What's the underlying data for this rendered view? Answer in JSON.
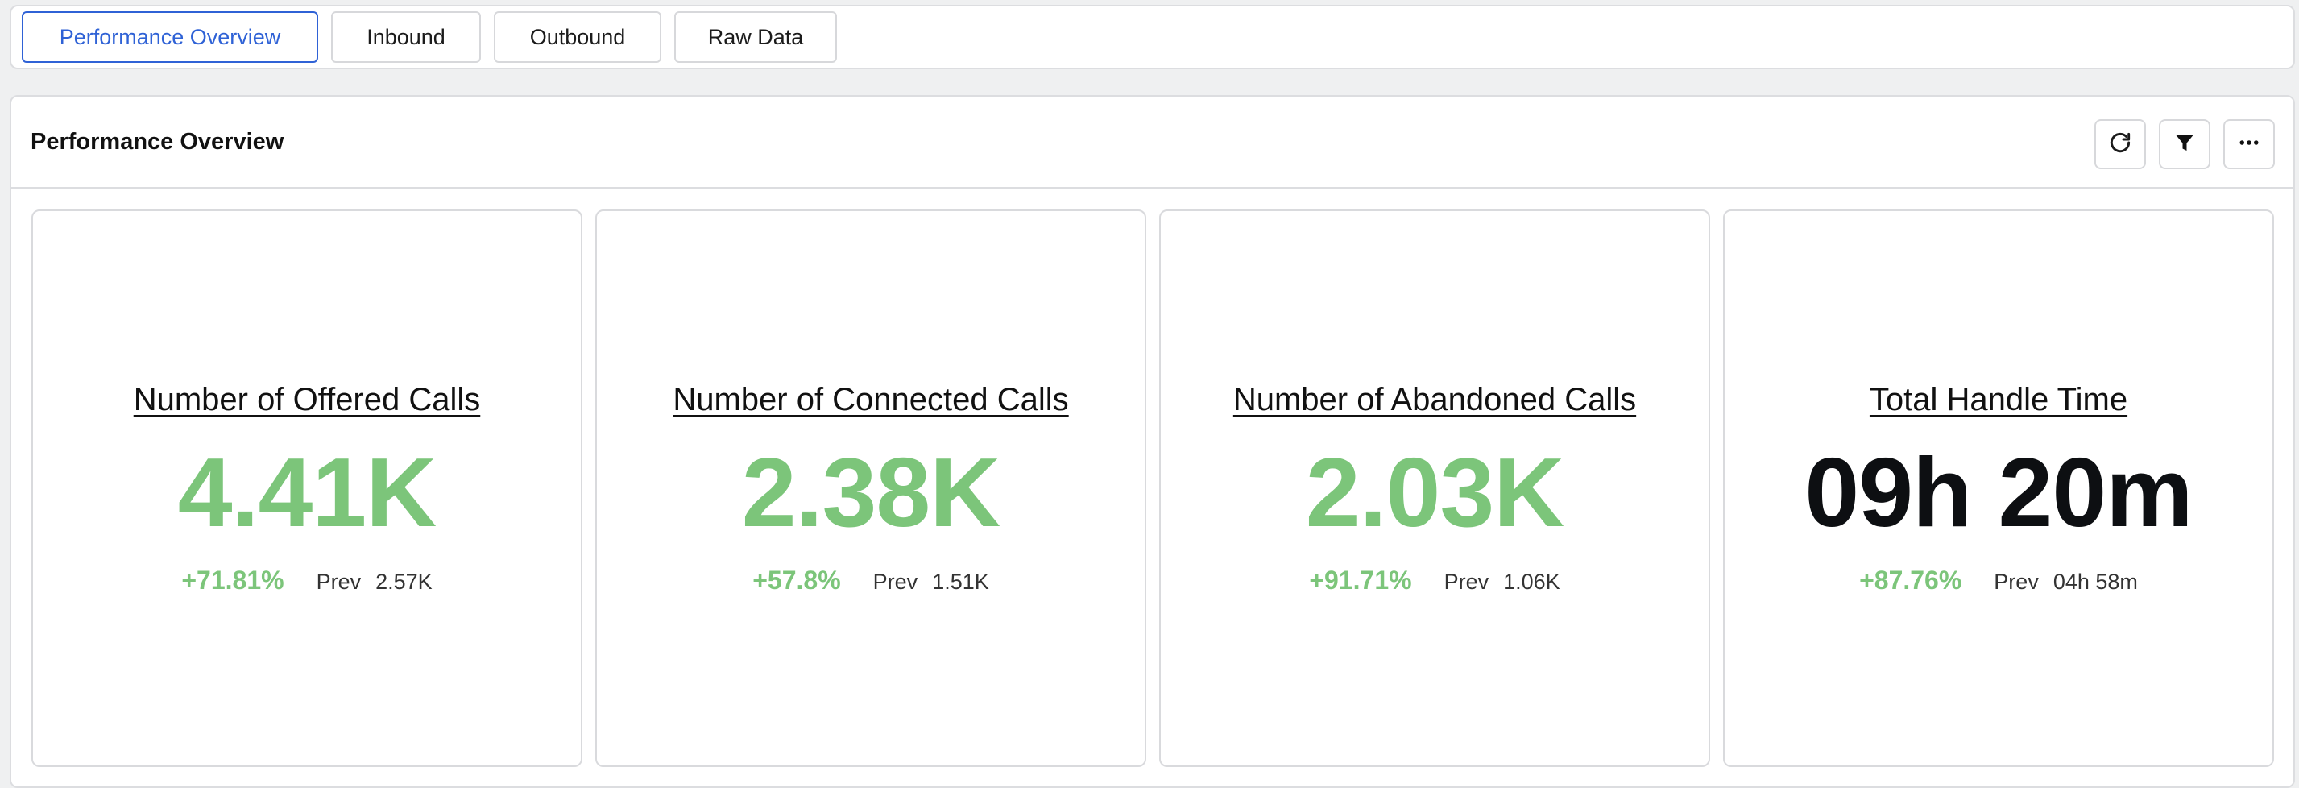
{
  "tabs": [
    {
      "label": "Performance Overview",
      "active": true
    },
    {
      "label": "Inbound",
      "active": false
    },
    {
      "label": "Outbound",
      "active": false
    },
    {
      "label": "Raw Data",
      "active": false
    }
  ],
  "panel": {
    "title": "Performance Overview",
    "actions": [
      "refresh-icon",
      "filter-icon",
      "more-icon"
    ]
  },
  "kpis": [
    {
      "title": "Number of Offered Calls",
      "value": "4.41K",
      "delta": "+71.81%",
      "prev_label": "Prev",
      "prev_value": "2.57K"
    },
    {
      "title": "Number of Connected Calls",
      "value": "2.38K",
      "delta": "+57.8%",
      "prev_label": "Prev",
      "prev_value": "1.51K"
    },
    {
      "title": "Number of Abandoned Calls",
      "value": "2.03K",
      "delta": "+91.71%",
      "prev_label": "Prev",
      "prev_value": "1.06K"
    },
    {
      "title": "Total Handle Time",
      "value": "09h 20m",
      "delta": "+87.76%",
      "prev_label": "Prev",
      "prev_value": "04h 58m"
    }
  ],
  "colors": {
    "accent": "#2f62d6",
    "positive": "#7cc57a",
    "value_dark": "#0d0f12"
  }
}
